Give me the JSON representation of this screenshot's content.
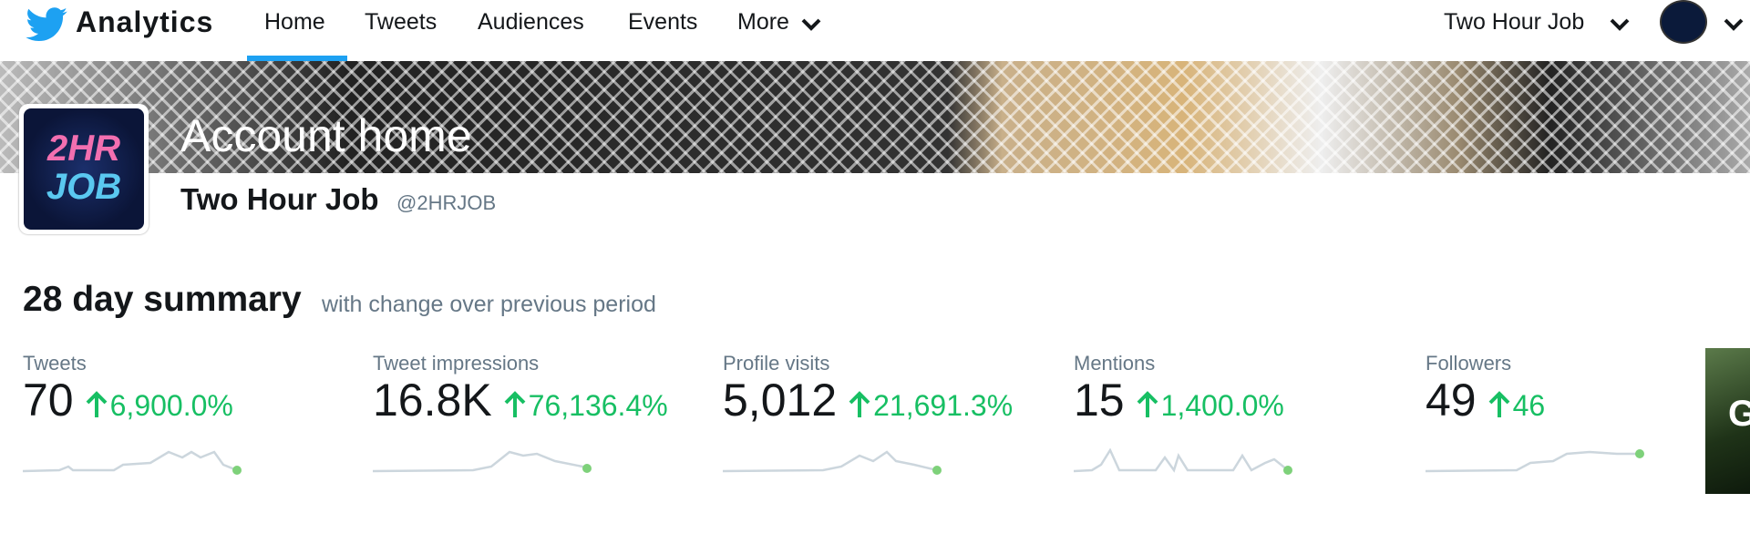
{
  "nav": {
    "brand": "Analytics",
    "items": [
      "Home",
      "Tweets",
      "Audiences",
      "Events",
      "More"
    ],
    "account": "Two Hour Job"
  },
  "header": {
    "title": "Account home",
    "name": "Two Hour Job",
    "handle": "@2HRJOB",
    "avatar_text": [
      "2HR",
      "JOB"
    ]
  },
  "summary": {
    "title": "28 day summary",
    "subtitle": "with change over previous period",
    "cards": [
      {
        "label": "Tweets",
        "value": "70",
        "change": "6,900.0%"
      },
      {
        "label": "Tweet impressions",
        "value": "16.8K",
        "change": "76,136.4%"
      },
      {
        "label": "Profile visits",
        "value": "5,012",
        "change": "21,691.3%"
      },
      {
        "label": "Mentions",
        "value": "15",
        "change": "1,400.0%"
      },
      {
        "label": "Followers",
        "value": "49",
        "change": "46"
      }
    ],
    "partial_card": "G"
  }
}
